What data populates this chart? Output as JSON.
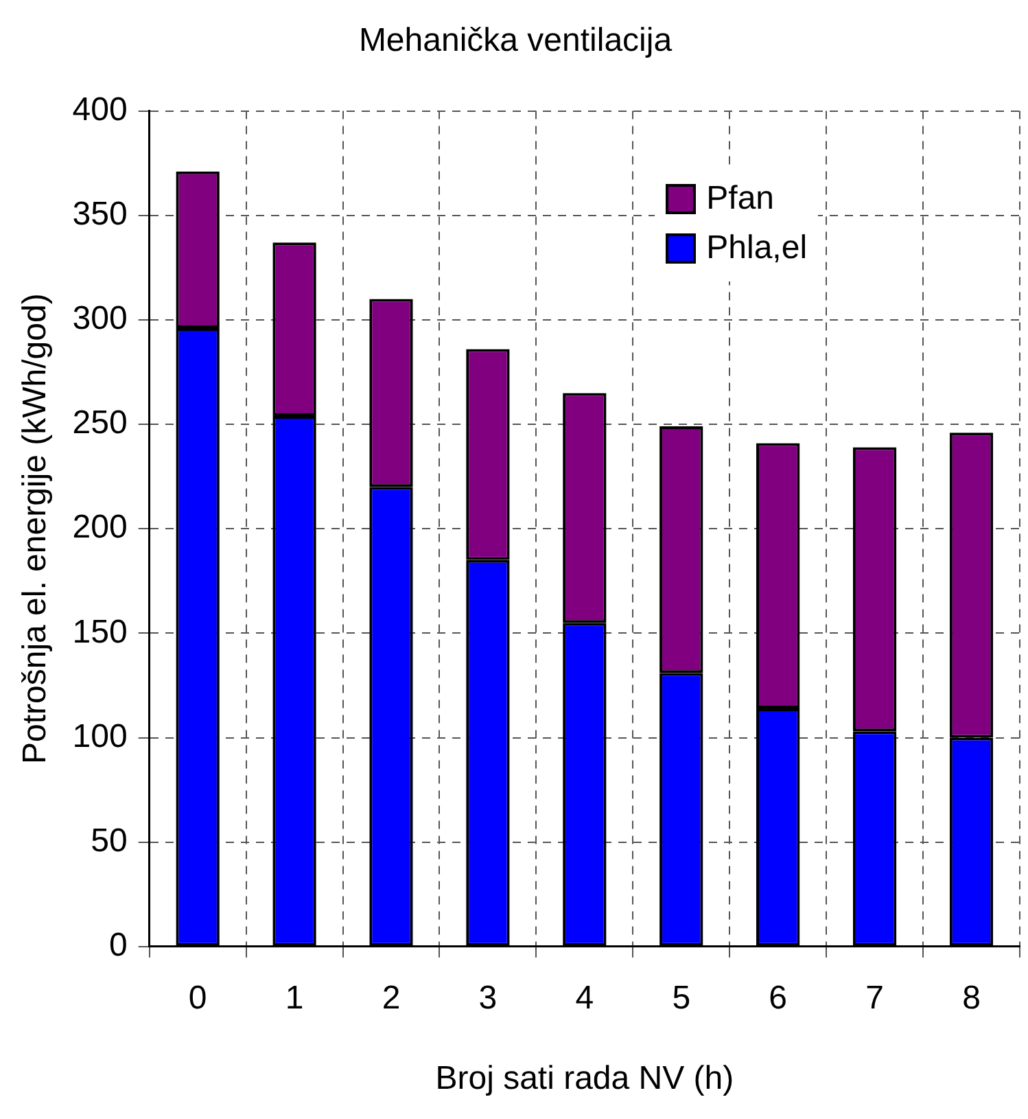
{
  "chart_data": {
    "type": "bar",
    "title": "Mehanička ventilacija",
    "xlabel": "Broj sati rada NV (h)",
    "ylabel": "Potrošnja el. energije (kWh/god)",
    "categories": [
      "0",
      "1",
      "2",
      "3",
      "4",
      "5",
      "6",
      "7",
      "8"
    ],
    "series": [
      {
        "name": "Phla,el",
        "color": "#0000ff",
        "values": [
          296,
          254,
          220,
          185,
          155,
          131,
          114,
          103,
          100
        ]
      },
      {
        "name": "Pfan",
        "color": "#800080",
        "values": [
          75,
          83,
          90,
          101,
          110,
          118,
          127,
          136,
          146
        ]
      }
    ],
    "stacked": true,
    "ylim": [
      0,
      400
    ],
    "yticks": [
      0,
      50,
      100,
      150,
      200,
      250,
      300,
      350,
      400
    ],
    "grid": true,
    "legend": "top right"
  }
}
